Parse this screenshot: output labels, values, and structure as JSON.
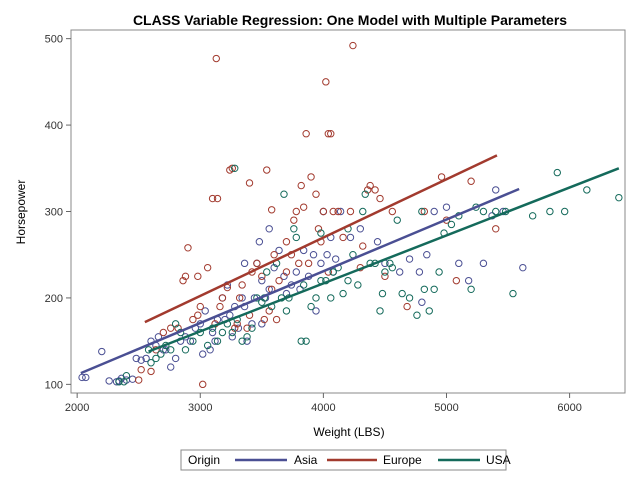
{
  "chart_data": {
    "type": "scatter",
    "title": "CLASS Variable Regression: One Model with Multiple Parameters",
    "xlabel": "Weight (LBS)",
    "ylabel": "Horsepower",
    "xlim": [
      1950,
      6450
    ],
    "ylim": [
      90,
      510
    ],
    "xticks": [
      "2000",
      "3000",
      "4000",
      "5000",
      "6000"
    ],
    "yticks": [
      "100",
      "200",
      "300",
      "400",
      "500"
    ],
    "legend": {
      "title": "Origin",
      "placement": "bottom"
    },
    "series": [
      {
        "name": "Asia",
        "color": "#4a4f93",
        "fit": {
          "x": [
            2030,
            5590
          ],
          "y": [
            113,
            326
          ]
        },
        "points": [
          [
            2040,
            108
          ],
          [
            2070,
            108
          ],
          [
            2200,
            138
          ],
          [
            2260,
            104
          ],
          [
            2320,
            103
          ],
          [
            2340,
            104
          ],
          [
            2360,
            107
          ],
          [
            2400,
            105
          ],
          [
            2450,
            106
          ],
          [
            2480,
            130
          ],
          [
            2520,
            128
          ],
          [
            2560,
            130
          ],
          [
            2600,
            150
          ],
          [
            2640,
            145
          ],
          [
            2700,
            140
          ],
          [
            2760,
            120
          ],
          [
            2800,
            130
          ],
          [
            2840,
            150
          ],
          [
            2880,
            155
          ],
          [
            2920,
            150
          ],
          [
            2960,
            165
          ],
          [
            3000,
            170
          ],
          [
            3040,
            185
          ],
          [
            3080,
            140
          ],
          [
            3100,
            160
          ],
          [
            3140,
            175
          ],
          [
            3180,
            200
          ],
          [
            3220,
            215
          ],
          [
            3240,
            180
          ],
          [
            3280,
            190
          ],
          [
            3310,
            165
          ],
          [
            3340,
            200
          ],
          [
            3360,
            240
          ],
          [
            3380,
            150
          ],
          [
            3420,
            170
          ],
          [
            3440,
            200
          ],
          [
            3460,
            240
          ],
          [
            3480,
            265
          ],
          [
            3500,
            220
          ],
          [
            3530,
            200
          ],
          [
            3560,
            280
          ],
          [
            3600,
            235
          ],
          [
            3640,
            255
          ],
          [
            3680,
            225
          ],
          [
            3700,
            205
          ],
          [
            3740,
            215
          ],
          [
            3780,
            230
          ],
          [
            3810,
            210
          ],
          [
            3840,
            255
          ],
          [
            3880,
            225
          ],
          [
            3920,
            250
          ],
          [
            3940,
            185
          ],
          [
            3980,
            240
          ],
          [
            4000,
            300
          ],
          [
            4030,
            250
          ],
          [
            4060,
            270
          ],
          [
            4080,
            230
          ],
          [
            4100,
            245
          ],
          [
            4140,
            300
          ],
          [
            4220,
            270
          ],
          [
            4300,
            280
          ],
          [
            4440,
            265
          ],
          [
            4500,
            240
          ],
          [
            4620,
            230
          ],
          [
            4700,
            245
          ],
          [
            4780,
            230
          ],
          [
            4800,
            195
          ],
          [
            4840,
            250
          ],
          [
            4900,
            300
          ],
          [
            5000,
            305
          ],
          [
            5100,
            240
          ],
          [
            5180,
            220
          ],
          [
            5300,
            240
          ],
          [
            5370,
            295
          ],
          [
            5400,
            325
          ],
          [
            5460,
            300
          ],
          [
            5620,
            235
          ],
          [
            3120,
            150
          ],
          [
            3200,
            175
          ],
          [
            3360,
            190
          ],
          [
            3560,
            210
          ],
          [
            2660,
            155
          ],
          [
            2720,
            140
          ],
          [
            3020,
            135
          ],
          [
            3260,
            155
          ],
          [
            3500,
            170
          ]
        ]
      },
      {
        "name": "Europe",
        "color": "#a23a2e",
        "fit": {
          "x": [
            2550,
            5410
          ],
          "y": [
            172,
            365
          ]
        },
        "points": [
          [
            2500,
            105
          ],
          [
            2520,
            117
          ],
          [
            2600,
            115
          ],
          [
            2640,
            140
          ],
          [
            2700,
            160
          ],
          [
            2760,
            165
          ],
          [
            2820,
            165
          ],
          [
            2880,
            225
          ],
          [
            2900,
            258
          ],
          [
            2940,
            175
          ],
          [
            2980,
            225
          ],
          [
            3000,
            190
          ],
          [
            3020,
            100
          ],
          [
            3060,
            235
          ],
          [
            3100,
            315
          ],
          [
            3120,
            170
          ],
          [
            3140,
            315
          ],
          [
            3180,
            200
          ],
          [
            3220,
            212
          ],
          [
            3240,
            348
          ],
          [
            3260,
            350
          ],
          [
            3280,
            165
          ],
          [
            3300,
            170
          ],
          [
            3320,
            200
          ],
          [
            3340,
            215
          ],
          [
            3380,
            165
          ],
          [
            3400,
            333
          ],
          [
            3420,
            230
          ],
          [
            3460,
            240
          ],
          [
            3500,
            225
          ],
          [
            3520,
            175
          ],
          [
            3540,
            348
          ],
          [
            3560,
            185
          ],
          [
            3580,
            302
          ],
          [
            3600,
            250
          ],
          [
            3620,
            175
          ],
          [
            3640,
            220
          ],
          [
            3700,
            265
          ],
          [
            3740,
            250
          ],
          [
            3780,
            300
          ],
          [
            3800,
            240
          ],
          [
            3820,
            330
          ],
          [
            3840,
            305
          ],
          [
            3860,
            390
          ],
          [
            3880,
            240
          ],
          [
            3900,
            340
          ],
          [
            3940,
            320
          ],
          [
            3960,
            280
          ],
          [
            3980,
            265
          ],
          [
            4000,
            300
          ],
          [
            4020,
            450
          ],
          [
            4040,
            390
          ],
          [
            4060,
            390
          ],
          [
            4080,
            300
          ],
          [
            4120,
            300
          ],
          [
            4160,
            270
          ],
          [
            4220,
            300
          ],
          [
            4240,
            492
          ],
          [
            4300,
            235
          ],
          [
            4320,
            260
          ],
          [
            4360,
            325
          ],
          [
            4380,
            330
          ],
          [
            4420,
            325
          ],
          [
            4460,
            315
          ],
          [
            4500,
            225
          ],
          [
            4560,
            300
          ],
          [
            4680,
            190
          ],
          [
            4820,
            300
          ],
          [
            4960,
            340
          ],
          [
            5000,
            290
          ],
          [
            5080,
            220
          ],
          [
            5200,
            335
          ],
          [
            5400,
            280
          ],
          [
            3130,
            477
          ],
          [
            2860,
            220
          ],
          [
            3580,
            210
          ],
          [
            3700,
            230
          ],
          [
            3400,
            180
          ],
          [
            3160,
            190
          ],
          [
            2980,
            180
          ],
          [
            3760,
            290
          ],
          [
            4040,
            230
          ]
        ]
      },
      {
        "name": "USA",
        "color": "#146a5b",
        "fit": {
          "x": [
            2580,
            6400
          ],
          "y": [
            138,
            350
          ]
        },
        "points": [
          [
            2340,
            103
          ],
          [
            2380,
            103
          ],
          [
            2400,
            110
          ],
          [
            2580,
            140
          ],
          [
            2600,
            125
          ],
          [
            2640,
            130
          ],
          [
            2680,
            135
          ],
          [
            2720,
            145
          ],
          [
            2760,
            140
          ],
          [
            2800,
            170
          ],
          [
            2840,
            160
          ],
          [
            2880,
            140
          ],
          [
            2940,
            150
          ],
          [
            3000,
            160
          ],
          [
            3060,
            145
          ],
          [
            3100,
            165
          ],
          [
            3140,
            150
          ],
          [
            3180,
            160
          ],
          [
            3220,
            170
          ],
          [
            3260,
            160
          ],
          [
            3300,
            175
          ],
          [
            3340,
            150
          ],
          [
            3380,
            155
          ],
          [
            3420,
            165
          ],
          [
            3460,
            200
          ],
          [
            3500,
            195
          ],
          [
            3520,
            200
          ],
          [
            3540,
            230
          ],
          [
            3580,
            190
          ],
          [
            3620,
            240
          ],
          [
            3660,
            200
          ],
          [
            3700,
            185
          ],
          [
            3720,
            200
          ],
          [
            3760,
            280
          ],
          [
            3780,
            270
          ],
          [
            3820,
            150
          ],
          [
            3840,
            215
          ],
          [
            3860,
            150
          ],
          [
            3900,
            190
          ],
          [
            3940,
            200
          ],
          [
            3980,
            220
          ],
          [
            4020,
            220
          ],
          [
            4060,
            200
          ],
          [
            4080,
            230
          ],
          [
            4120,
            235
          ],
          [
            4160,
            205
          ],
          [
            4200,
            220
          ],
          [
            4240,
            250
          ],
          [
            4280,
            215
          ],
          [
            4320,
            300
          ],
          [
            4340,
            320
          ],
          [
            4380,
            240
          ],
          [
            4420,
            240
          ],
          [
            4460,
            185
          ],
          [
            4480,
            205
          ],
          [
            4500,
            230
          ],
          [
            4540,
            240
          ],
          [
            4600,
            290
          ],
          [
            4640,
            205
          ],
          [
            4700,
            200
          ],
          [
            4760,
            180
          ],
          [
            4820,
            210
          ],
          [
            4860,
            185
          ],
          [
            4900,
            210
          ],
          [
            4940,
            230
          ],
          [
            4980,
            275
          ],
          [
            5040,
            285
          ],
          [
            5100,
            295
          ],
          [
            5200,
            210
          ],
          [
            5240,
            305
          ],
          [
            5300,
            300
          ],
          [
            5400,
            300
          ],
          [
            5480,
            300
          ],
          [
            5540,
            205
          ],
          [
            5700,
            295
          ],
          [
            5840,
            300
          ],
          [
            5960,
            300
          ],
          [
            6140,
            325
          ],
          [
            6400,
            316
          ],
          [
            5900,
            345
          ],
          [
            3280,
            350
          ],
          [
            3680,
            320
          ],
          [
            3980,
            275
          ],
          [
            4200,
            280
          ],
          [
            4560,
            235
          ],
          [
            4800,
            300
          ]
        ]
      }
    ]
  }
}
